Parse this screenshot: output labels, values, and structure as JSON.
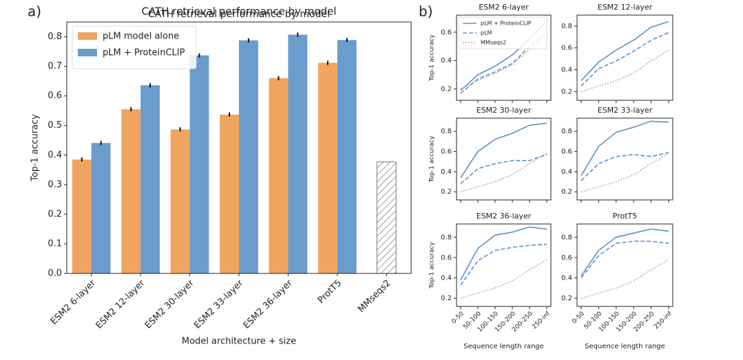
{
  "chart_data": [
    {
      "type": "bar",
      "panel_label": "a)",
      "title": "CATH retrieval performance by model",
      "xlabel": "Model architecture + size",
      "ylabel": "Top-1 accuracy",
      "categories": [
        "ESM2 6-layer",
        "ESM2 12-layer",
        "ESM2 30-layer",
        "ESM2 33-layer",
        "ESM2 36-layer",
        "ProtT5",
        "MMseqs2"
      ],
      "series": [
        {
          "name": "pLM model alone",
          "color": "#f0a460",
          "values": [
            0.385,
            0.555,
            0.487,
            0.537,
            0.66,
            0.712,
            null
          ],
          "errors": [
            0.007,
            0.007,
            0.007,
            0.007,
            0.007,
            0.007,
            null
          ]
        },
        {
          "name": "pLM + ProteinCLIP",
          "color": "#6a9ccc",
          "values": [
            0.441,
            0.636,
            0.737,
            0.788,
            0.807,
            0.789,
            null
          ],
          "errors": [
            0.007,
            0.007,
            0.007,
            0.007,
            0.007,
            0.007,
            null
          ]
        }
      ],
      "baseline_values": [
        null,
        null,
        null,
        null,
        null,
        null,
        0.377
      ],
      "baseline_hatch": true,
      "ylim": [
        0,
        0.85
      ],
      "yticks": [
        {
          "value": 0,
          "label": "0.0"
        },
        0.1,
        0.2,
        0.3,
        0.4,
        0.5,
        0.6,
        0.7,
        0.8
      ],
      "legend": "upper left"
    },
    {
      "type": "line",
      "panel_label": "b)",
      "title": "ESM2 6-layer",
      "ylabel": "Top-1 accuracy",
      "xticklabels": false,
      "categories": [
        "0-50",
        "50-100",
        "100-150",
        "150-200",
        "200-250",
        "250-inf"
      ],
      "series": [
        {
          "name": "pLM + ProteinCLIP",
          "color": "#5b8fc9",
          "dash": "solid",
          "values": [
            0.19,
            0.3,
            0.36,
            0.44,
            0.55,
            0.68
          ]
        },
        {
          "name": "pLM",
          "color": "#5b8fc9",
          "dash": "dashed",
          "values": [
            0.17,
            0.27,
            0.32,
            0.38,
            0.5,
            0.6
          ]
        },
        {
          "name": "MMseqs2",
          "color": "#999999",
          "dash": "dotted",
          "values": [
            0.2,
            0.26,
            0.31,
            0.37,
            0.48,
            0.59
          ]
        }
      ],
      "ylim": [
        0.12,
        0.72
      ],
      "yticks": [
        0.2,
        0.4,
        0.6
      ],
      "legend": "upper left"
    },
    {
      "type": "line",
      "title": "ESM2 12-layer",
      "xticklabels": false,
      "categories": [
        "0-50",
        "50-100",
        "100-150",
        "150-200",
        "200-250",
        "250-inf"
      ],
      "series": [
        {
          "color": "#5b8fc9",
          "dash": "solid",
          "values": [
            0.3,
            0.47,
            0.58,
            0.67,
            0.79,
            0.84
          ]
        },
        {
          "color": "#5b8fc9",
          "dash": "dashed",
          "values": [
            0.25,
            0.41,
            0.48,
            0.57,
            0.67,
            0.74
          ]
        },
        {
          "color": "#999999",
          "dash": "dotted",
          "values": [
            0.2,
            0.25,
            0.3,
            0.37,
            0.48,
            0.58
          ]
        }
      ],
      "ylim": [
        0.12,
        0.9
      ],
      "yticks": [
        0.2,
        0.4,
        0.6,
        0.8
      ]
    },
    {
      "type": "line",
      "title": "ESM2 30-layer",
      "ylabel": "Top-1 accuracy",
      "xticklabels": false,
      "categories": [
        "0-50",
        "50-100",
        "100-150",
        "150-200",
        "200-250",
        "250-inf"
      ],
      "series": [
        {
          "color": "#5b8fc9",
          "dash": "solid",
          "values": [
            0.34,
            0.6,
            0.72,
            0.78,
            0.86,
            0.88
          ]
        },
        {
          "color": "#5b8fc9",
          "dash": "dashed",
          "values": [
            0.28,
            0.43,
            0.48,
            0.51,
            0.51,
            0.57
          ]
        },
        {
          "color": "#999999",
          "dash": "dotted",
          "values": [
            0.2,
            0.25,
            0.3,
            0.37,
            0.48,
            0.58
          ]
        }
      ],
      "ylim": [
        0.12,
        0.93
      ],
      "yticks": [
        0.2,
        0.4,
        0.6,
        0.8
      ]
    },
    {
      "type": "line",
      "title": "ESM2 33-layer",
      "xticklabels": false,
      "categories": [
        "0-50",
        "50-100",
        "100-150",
        "150-200",
        "200-250",
        "250-inf"
      ],
      "series": [
        {
          "color": "#5b8fc9",
          "dash": "solid",
          "values": [
            0.36,
            0.65,
            0.79,
            0.84,
            0.9,
            0.89
          ]
        },
        {
          "color": "#5b8fc9",
          "dash": "dashed",
          "values": [
            0.31,
            0.48,
            0.55,
            0.57,
            0.55,
            0.59
          ]
        },
        {
          "color": "#999999",
          "dash": "dotted",
          "values": [
            0.2,
            0.25,
            0.3,
            0.37,
            0.48,
            0.58
          ]
        }
      ],
      "ylim": [
        0.12,
        0.93
      ],
      "yticks": [
        0.2,
        0.4,
        0.6,
        0.8
      ]
    },
    {
      "type": "line",
      "title": "ESM2 36-layer",
      "ylabel": "Top-1 accuracy",
      "xlabel": "Sequence length range",
      "xticklabels": true,
      "categories": [
        "0-50",
        "50-100",
        "100-150",
        "150-200",
        "200-250",
        "250-inf"
      ],
      "series": [
        {
          "color": "#5b8fc9",
          "dash": "solid",
          "values": [
            0.38,
            0.69,
            0.82,
            0.85,
            0.9,
            0.88
          ]
        },
        {
          "color": "#5b8fc9",
          "dash": "dashed",
          "values": [
            0.33,
            0.57,
            0.67,
            0.7,
            0.72,
            0.73
          ]
        },
        {
          "color": "#999999",
          "dash": "dotted",
          "values": [
            0.2,
            0.25,
            0.3,
            0.37,
            0.48,
            0.58
          ]
        }
      ],
      "ylim": [
        0.12,
        0.93
      ],
      "yticks": [
        0.2,
        0.4,
        0.6,
        0.8
      ]
    },
    {
      "type": "line",
      "title": "ProtT5",
      "xlabel": "Sequence length range",
      "xticklabels": true,
      "categories": [
        "0-50",
        "50-100",
        "100-150",
        "150-200",
        "200-250",
        "250-inf"
      ],
      "series": [
        {
          "color": "#5b8fc9",
          "dash": "solid",
          "values": [
            0.42,
            0.67,
            0.8,
            0.84,
            0.88,
            0.86
          ]
        },
        {
          "color": "#5b8fc9",
          "dash": "dashed",
          "values": [
            0.4,
            0.62,
            0.74,
            0.76,
            0.76,
            0.74
          ]
        },
        {
          "color": "#999999",
          "dash": "dotted",
          "values": [
            0.2,
            0.25,
            0.3,
            0.37,
            0.48,
            0.58
          ]
        }
      ],
      "ylim": [
        0.12,
        0.93
      ],
      "yticks": [
        0.2,
        0.4,
        0.6,
        0.8
      ]
    }
  ]
}
